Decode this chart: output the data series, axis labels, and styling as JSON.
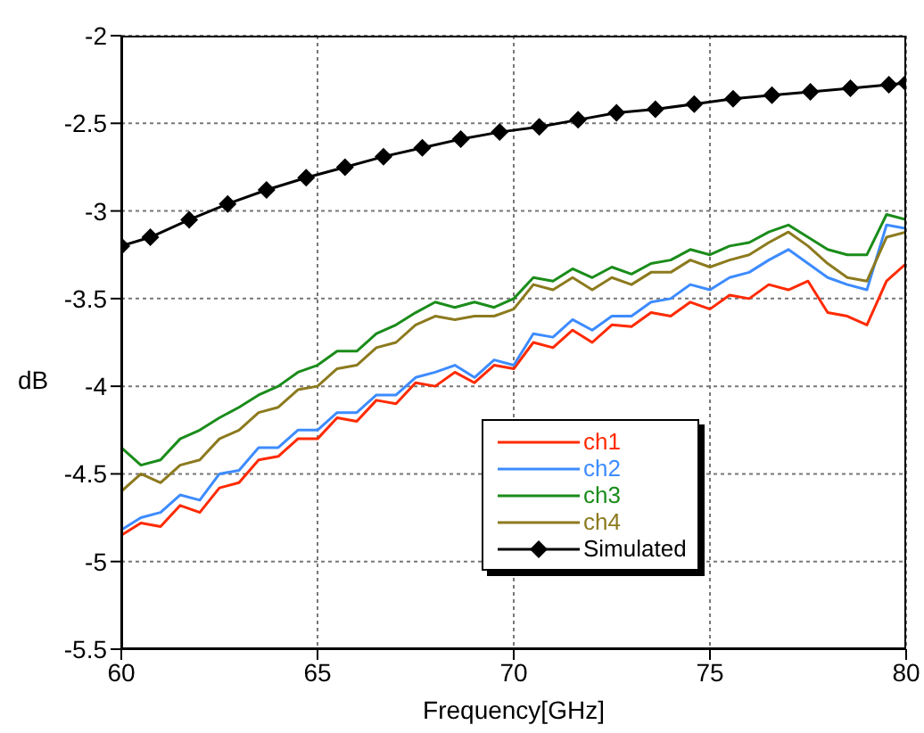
{
  "chart_data": {
    "type": "line",
    "xlabel": "Frequency[GHz]",
    "ylabel": "dB",
    "xlim": [
      60,
      80
    ],
    "xticks": [
      60,
      65,
      70,
      75,
      80
    ],
    "ylim": [
      -5.5,
      -2
    ],
    "yticks": [
      -5.5,
      -5,
      -4.5,
      -4,
      -3.5,
      -3,
      -2.5,
      -2
    ],
    "grid": true,
    "legend": "bottom right",
    "marker": "none",
    "series": [
      {
        "name": "ch1",
        "color": "#ff2a00",
        "x": [
          60,
          60.5,
          61,
          61.5,
          62,
          62.5,
          63,
          63.5,
          64,
          64.5,
          65,
          65.5,
          66,
          66.5,
          67,
          67.5,
          68,
          68.5,
          69,
          69.5,
          70,
          70.5,
          71,
          71.5,
          72,
          72.5,
          73,
          73.5,
          74,
          74.5,
          75,
          75.5,
          76,
          76.5,
          77,
          77.5,
          78,
          78.5,
          79,
          79.5,
          80
        ],
        "values": [
          -4.85,
          -4.78,
          -4.8,
          -4.68,
          -4.72,
          -4.58,
          -4.55,
          -4.42,
          -4.4,
          -4.3,
          -4.3,
          -4.18,
          -4.2,
          -4.08,
          -4.1,
          -3.98,
          -4.0,
          -3.92,
          -3.98,
          -3.88,
          -3.9,
          -3.75,
          -3.78,
          -3.68,
          -3.75,
          -3.65,
          -3.66,
          -3.58,
          -3.6,
          -3.52,
          -3.56,
          -3.48,
          -3.5,
          -3.42,
          -3.45,
          -3.4,
          -3.58,
          -3.6,
          -3.65,
          -3.4,
          -3.3
        ]
      },
      {
        "name": "ch2",
        "color": "#3d8bff",
        "x": [
          60,
          60.5,
          61,
          61.5,
          62,
          62.5,
          63,
          63.5,
          64,
          64.5,
          65,
          65.5,
          66,
          66.5,
          67,
          67.5,
          68,
          68.5,
          69,
          69.5,
          70,
          70.5,
          71,
          71.5,
          72,
          72.5,
          73,
          73.5,
          74,
          74.5,
          75,
          75.5,
          76,
          76.5,
          77,
          77.5,
          78,
          78.5,
          79,
          79.5,
          80
        ],
        "values": [
          -4.82,
          -4.75,
          -4.72,
          -4.62,
          -4.65,
          -4.5,
          -4.48,
          -4.35,
          -4.35,
          -4.25,
          -4.25,
          -4.15,
          -4.15,
          -4.05,
          -4.05,
          -3.95,
          -3.92,
          -3.88,
          -3.95,
          -3.85,
          -3.88,
          -3.7,
          -3.72,
          -3.62,
          -3.68,
          -3.6,
          -3.6,
          -3.52,
          -3.5,
          -3.42,
          -3.45,
          -3.38,
          -3.35,
          -3.28,
          -3.22,
          -3.3,
          -3.38,
          -3.42,
          -3.45,
          -3.08,
          -3.1
        ]
      },
      {
        "name": "ch3",
        "color": "#1a8c1a",
        "x": [
          60,
          60.5,
          61,
          61.5,
          62,
          62.5,
          63,
          63.5,
          64,
          64.5,
          65,
          65.5,
          66,
          66.5,
          67,
          67.5,
          68,
          68.5,
          69,
          69.5,
          70,
          70.5,
          71,
          71.5,
          72,
          72.5,
          73,
          73.5,
          74,
          74.5,
          75,
          75.5,
          76,
          76.5,
          77,
          77.5,
          78,
          78.5,
          79,
          79.5,
          80
        ],
        "values": [
          -4.35,
          -4.45,
          -4.42,
          -4.3,
          -4.25,
          -4.18,
          -4.12,
          -4.05,
          -4.0,
          -3.92,
          -3.88,
          -3.8,
          -3.8,
          -3.7,
          -3.65,
          -3.58,
          -3.52,
          -3.55,
          -3.52,
          -3.55,
          -3.5,
          -3.38,
          -3.4,
          -3.33,
          -3.38,
          -3.32,
          -3.36,
          -3.3,
          -3.28,
          -3.22,
          -3.25,
          -3.2,
          -3.18,
          -3.12,
          -3.08,
          -3.15,
          -3.22,
          -3.25,
          -3.25,
          -3.02,
          -3.05
        ]
      },
      {
        "name": "ch4",
        "color": "#8c7a1e",
        "x": [
          60,
          60.5,
          61,
          61.5,
          62,
          62.5,
          63,
          63.5,
          64,
          64.5,
          65,
          65.5,
          66,
          66.5,
          67,
          67.5,
          68,
          68.5,
          69,
          69.5,
          70,
          70.5,
          71,
          71.5,
          72,
          72.5,
          73,
          73.5,
          74,
          74.5,
          75,
          75.5,
          76,
          76.5,
          77,
          77.5,
          78,
          78.5,
          79,
          79.5,
          80
        ],
        "values": [
          -4.6,
          -4.5,
          -4.55,
          -4.45,
          -4.42,
          -4.3,
          -4.25,
          -4.15,
          -4.12,
          -4.02,
          -4.0,
          -3.9,
          -3.88,
          -3.78,
          -3.75,
          -3.65,
          -3.6,
          -3.62,
          -3.6,
          -3.6,
          -3.56,
          -3.42,
          -3.45,
          -3.38,
          -3.45,
          -3.38,
          -3.42,
          -3.35,
          -3.35,
          -3.28,
          -3.32,
          -3.28,
          -3.25,
          -3.18,
          -3.12,
          -3.2,
          -3.3,
          -3.38,
          -3.4,
          -3.15,
          -3.12
        ]
      },
      {
        "name": "Simulated",
        "color": "#000000",
        "marker": "diamond",
        "x": [
          60,
          60.74,
          61.73,
          62.71,
          63.7,
          64.71,
          65.7,
          66.68,
          67.67,
          68.65,
          69.64,
          70.65,
          71.64,
          72.62,
          73.61,
          74.6,
          75.59,
          76.58,
          77.56,
          78.58,
          79.56,
          80
        ],
        "values": [
          -3.2,
          -3.15,
          -3.05,
          -2.96,
          -2.88,
          -2.81,
          -2.75,
          -2.69,
          -2.64,
          -2.59,
          -2.55,
          -2.52,
          -2.48,
          -2.44,
          -2.42,
          -2.39,
          -2.36,
          -2.34,
          -2.32,
          -2.3,
          -2.28,
          -2.27
        ]
      }
    ]
  }
}
